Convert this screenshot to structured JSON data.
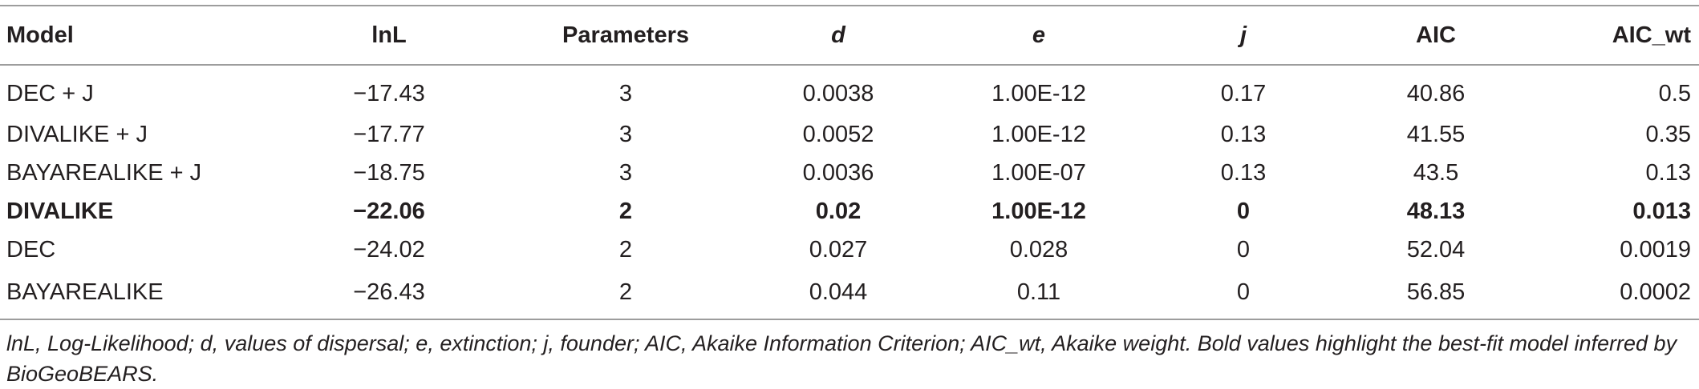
{
  "table": {
    "headers": [
      "Model",
      "lnL",
      "Parameters",
      "d",
      "e",
      "j",
      "AIC",
      "AIC_wt"
    ],
    "rows": [
      [
        "DEC + J",
        "−17.43",
        "3",
        "0.0038",
        "1.00E-12",
        "0.17",
        "40.86",
        "0.5"
      ],
      [
        "DIVALIKE + J",
        "−17.77",
        "3",
        "0.0052",
        "1.00E-12",
        "0.13",
        "41.55",
        "0.35"
      ],
      [
        "BAYAREALIKE + J",
        "−18.75",
        "3",
        "0.0036",
        "1.00E-07",
        "0.13",
        "43.5",
        "0.13"
      ],
      [
        "DIVALIKE",
        "−22.06",
        "2",
        "0.02",
        "1.00E-12",
        "0",
        "48.13",
        "0.013"
      ],
      [
        "DEC",
        "−24.02",
        "2",
        "0.027",
        "0.028",
        "0",
        "52.04",
        "0.0019"
      ],
      [
        "BAYAREALIKE",
        "−26.43",
        "2",
        "0.044",
        "0.11",
        "0",
        "56.85",
        "0.0002"
      ]
    ],
    "bold_row_index": 3
  },
  "caption": "lnL, Log-Likelihood; d, values of dispersal; e, extinction; j, founder; AIC, Akaike Information Criterion; AIC_wt, Akaike weight. Bold values highlight the best-fit model inferred by BioGeoBEARS."
}
